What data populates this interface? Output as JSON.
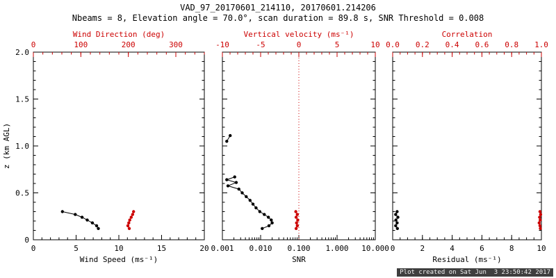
{
  "title": "VAD_97_20170601_214110, 20170601.214206",
  "subtitle": "Nbeams = 8, Elevation angle = 70.0°, scan duration = 89.8 s, SNR Threshold = 0.008",
  "footer": "Plot created on Sat Jun  3 23:50:42 2017",
  "colors": {
    "axis": "#000000",
    "secondary": "#cc0000",
    "background": "#ffffff"
  },
  "yaxis": {
    "label": "z (km AGL)",
    "lim": [
      0,
      2
    ],
    "minor_div": 5,
    "ticks": [
      {
        "v": 0,
        "label": "0"
      },
      {
        "v": 0.5,
        "label": "0.5"
      },
      {
        "v": 1.0,
        "label": "1.0"
      },
      {
        "v": 1.5,
        "label": "1.5"
      },
      {
        "v": 2.0,
        "label": "2.0"
      }
    ]
  },
  "chart_data": [
    {
      "type": "line",
      "name": "wind",
      "bottom_axis": {
        "label": "Wind Speed (ms⁻¹)",
        "scale": "linear",
        "lim": [
          0,
          20
        ],
        "minor_div": 5,
        "color": "#000000",
        "ticks": [
          {
            "v": 0,
            "label": "0"
          },
          {
            "v": 5,
            "label": "5"
          },
          {
            "v": 10,
            "label": "10"
          },
          {
            "v": 15,
            "label": "15"
          },
          {
            "v": 20,
            "label": "20"
          }
        ]
      },
      "top_axis": {
        "label": "Wind Direction (deg)",
        "scale": "linear",
        "lim": [
          0,
          360
        ],
        "minor_div": 5,
        "color": "#cc0000",
        "ticks": [
          {
            "v": 0,
            "label": "0"
          },
          {
            "v": 100,
            "label": "100"
          },
          {
            "v": 200,
            "label": "200"
          },
          {
            "v": 300,
            "label": "300"
          }
        ]
      },
      "series": [
        {
          "name": "wind-speed",
          "axis": "bottom",
          "color": "#000000",
          "points": [
            [
              3.4,
              0.3
            ],
            [
              4.9,
              0.27
            ],
            [
              5.7,
              0.24
            ],
            [
              6.3,
              0.21
            ],
            [
              6.9,
              0.18
            ],
            [
              7.4,
              0.15
            ],
            [
              7.6,
              0.12
            ]
          ]
        },
        {
          "name": "wind-direction",
          "axis": "top",
          "color": "#cc0000",
          "points": [
            [
              211,
              0.3
            ],
            [
              209,
              0.27
            ],
            [
              206,
              0.24
            ],
            [
              203,
              0.21
            ],
            [
              201,
              0.18
            ],
            [
              199,
              0.15
            ],
            [
              202,
              0.12
            ]
          ]
        }
      ]
    },
    {
      "type": "line",
      "name": "snr",
      "bottom_axis": {
        "label": "SNR",
        "scale": "log",
        "lim": [
          0.001,
          10
        ],
        "color": "#000000",
        "ticks": [
          {
            "v": 0.001,
            "label": "0.001"
          },
          {
            "v": 0.01,
            "label": "0.010"
          },
          {
            "v": 0.1,
            "label": "0.100"
          },
          {
            "v": 1,
            "label": "1.000"
          },
          {
            "v": 10,
            "label": "10.000"
          }
        ]
      },
      "top_axis": {
        "label": "Vertical velocity (ms⁻¹)",
        "scale": "linear",
        "lim": [
          -10,
          10
        ],
        "minor_div": 5,
        "color": "#cc0000",
        "ticks": [
          {
            "v": -10,
            "label": "-10"
          },
          {
            "v": -5,
            "label": "-5"
          },
          {
            "v": 0,
            "label": "0"
          },
          {
            "v": 5,
            "label": "5"
          },
          {
            "v": 10,
            "label": "10"
          }
        ]
      },
      "refline": {
        "axis": "top",
        "value": 0,
        "style": "dotted",
        "color": "#cc0000"
      },
      "series": [
        {
          "name": "snr-upper",
          "axis": "bottom",
          "color": "#000000",
          "points": [
            [
              0.0016,
              1.11
            ],
            [
              0.0013,
              1.05
            ]
          ]
        },
        {
          "name": "snr-profile",
          "axis": "bottom",
          "color": "#000000",
          "points": [
            [
              0.0021,
              0.67
            ],
            [
              0.0013,
              0.64
            ],
            [
              0.0023,
              0.61
            ],
            [
              0.0014,
              0.575
            ],
            [
              0.0027,
              0.54
            ],
            [
              0.0033,
              0.5
            ],
            [
              0.0042,
              0.46
            ],
            [
              0.0053,
              0.42
            ],
            [
              0.0063,
              0.38
            ],
            [
              0.0076,
              0.34
            ],
            [
              0.0095,
              0.3
            ],
            [
              0.0125,
              0.27
            ],
            [
              0.016,
              0.24
            ],
            [
              0.019,
              0.21
            ],
            [
              0.02,
              0.18
            ],
            [
              0.0165,
              0.15
            ],
            [
              0.011,
              0.12
            ]
          ]
        },
        {
          "name": "vertical-velocity",
          "axis": "top",
          "color": "#cc0000",
          "points": [
            [
              -0.4,
              0.3
            ],
            [
              -0.2,
              0.27
            ],
            [
              -0.35,
              0.24
            ],
            [
              -0.15,
              0.21
            ],
            [
              -0.3,
              0.18
            ],
            [
              -0.2,
              0.15
            ],
            [
              -0.35,
              0.12
            ]
          ]
        }
      ]
    },
    {
      "type": "line",
      "name": "residual",
      "bottom_axis": {
        "label": "Residual (ms⁻¹)",
        "scale": "linear",
        "lim": [
          0,
          10
        ],
        "minor_div": 4,
        "color": "#000000",
        "ticks": [
          {
            "v": 0,
            "label": "0"
          },
          {
            "v": 2,
            "label": "2"
          },
          {
            "v": 4,
            "label": "4"
          },
          {
            "v": 6,
            "label": "6"
          },
          {
            "v": 8,
            "label": "8"
          },
          {
            "v": 10,
            "label": "10"
          }
        ]
      },
      "top_axis": {
        "label": "Correlation",
        "scale": "linear",
        "lim": [
          0,
          1
        ],
        "minor_div": 4,
        "color": "#cc0000",
        "ticks": [
          {
            "v": 0,
            "label": "0.0"
          },
          {
            "v": 0.2,
            "label": "0.2"
          },
          {
            "v": 0.4,
            "label": "0.4"
          },
          {
            "v": 0.6,
            "label": "0.6"
          },
          {
            "v": 0.8,
            "label": "0.8"
          },
          {
            "v": 1.0,
            "label": "1.0"
          }
        ]
      },
      "series": [
        {
          "name": "residual",
          "axis": "bottom",
          "color": "#000000",
          "points": [
            [
              0.3,
              0.3
            ],
            [
              0.2,
              0.27
            ],
            [
              0.35,
              0.24
            ],
            [
              0.22,
              0.21
            ],
            [
              0.3,
              0.18
            ],
            [
              0.2,
              0.15
            ],
            [
              0.32,
              0.12
            ]
          ]
        },
        {
          "name": "correlation",
          "axis": "top",
          "color": "#cc0000",
          "points": [
            [
              0.99,
              0.3
            ],
            [
              0.995,
              0.27
            ],
            [
              0.988,
              0.24
            ],
            [
              0.992,
              0.21
            ],
            [
              0.985,
              0.18
            ],
            [
              0.99,
              0.15
            ],
            [
              0.993,
              0.12
            ]
          ]
        }
      ]
    }
  ]
}
